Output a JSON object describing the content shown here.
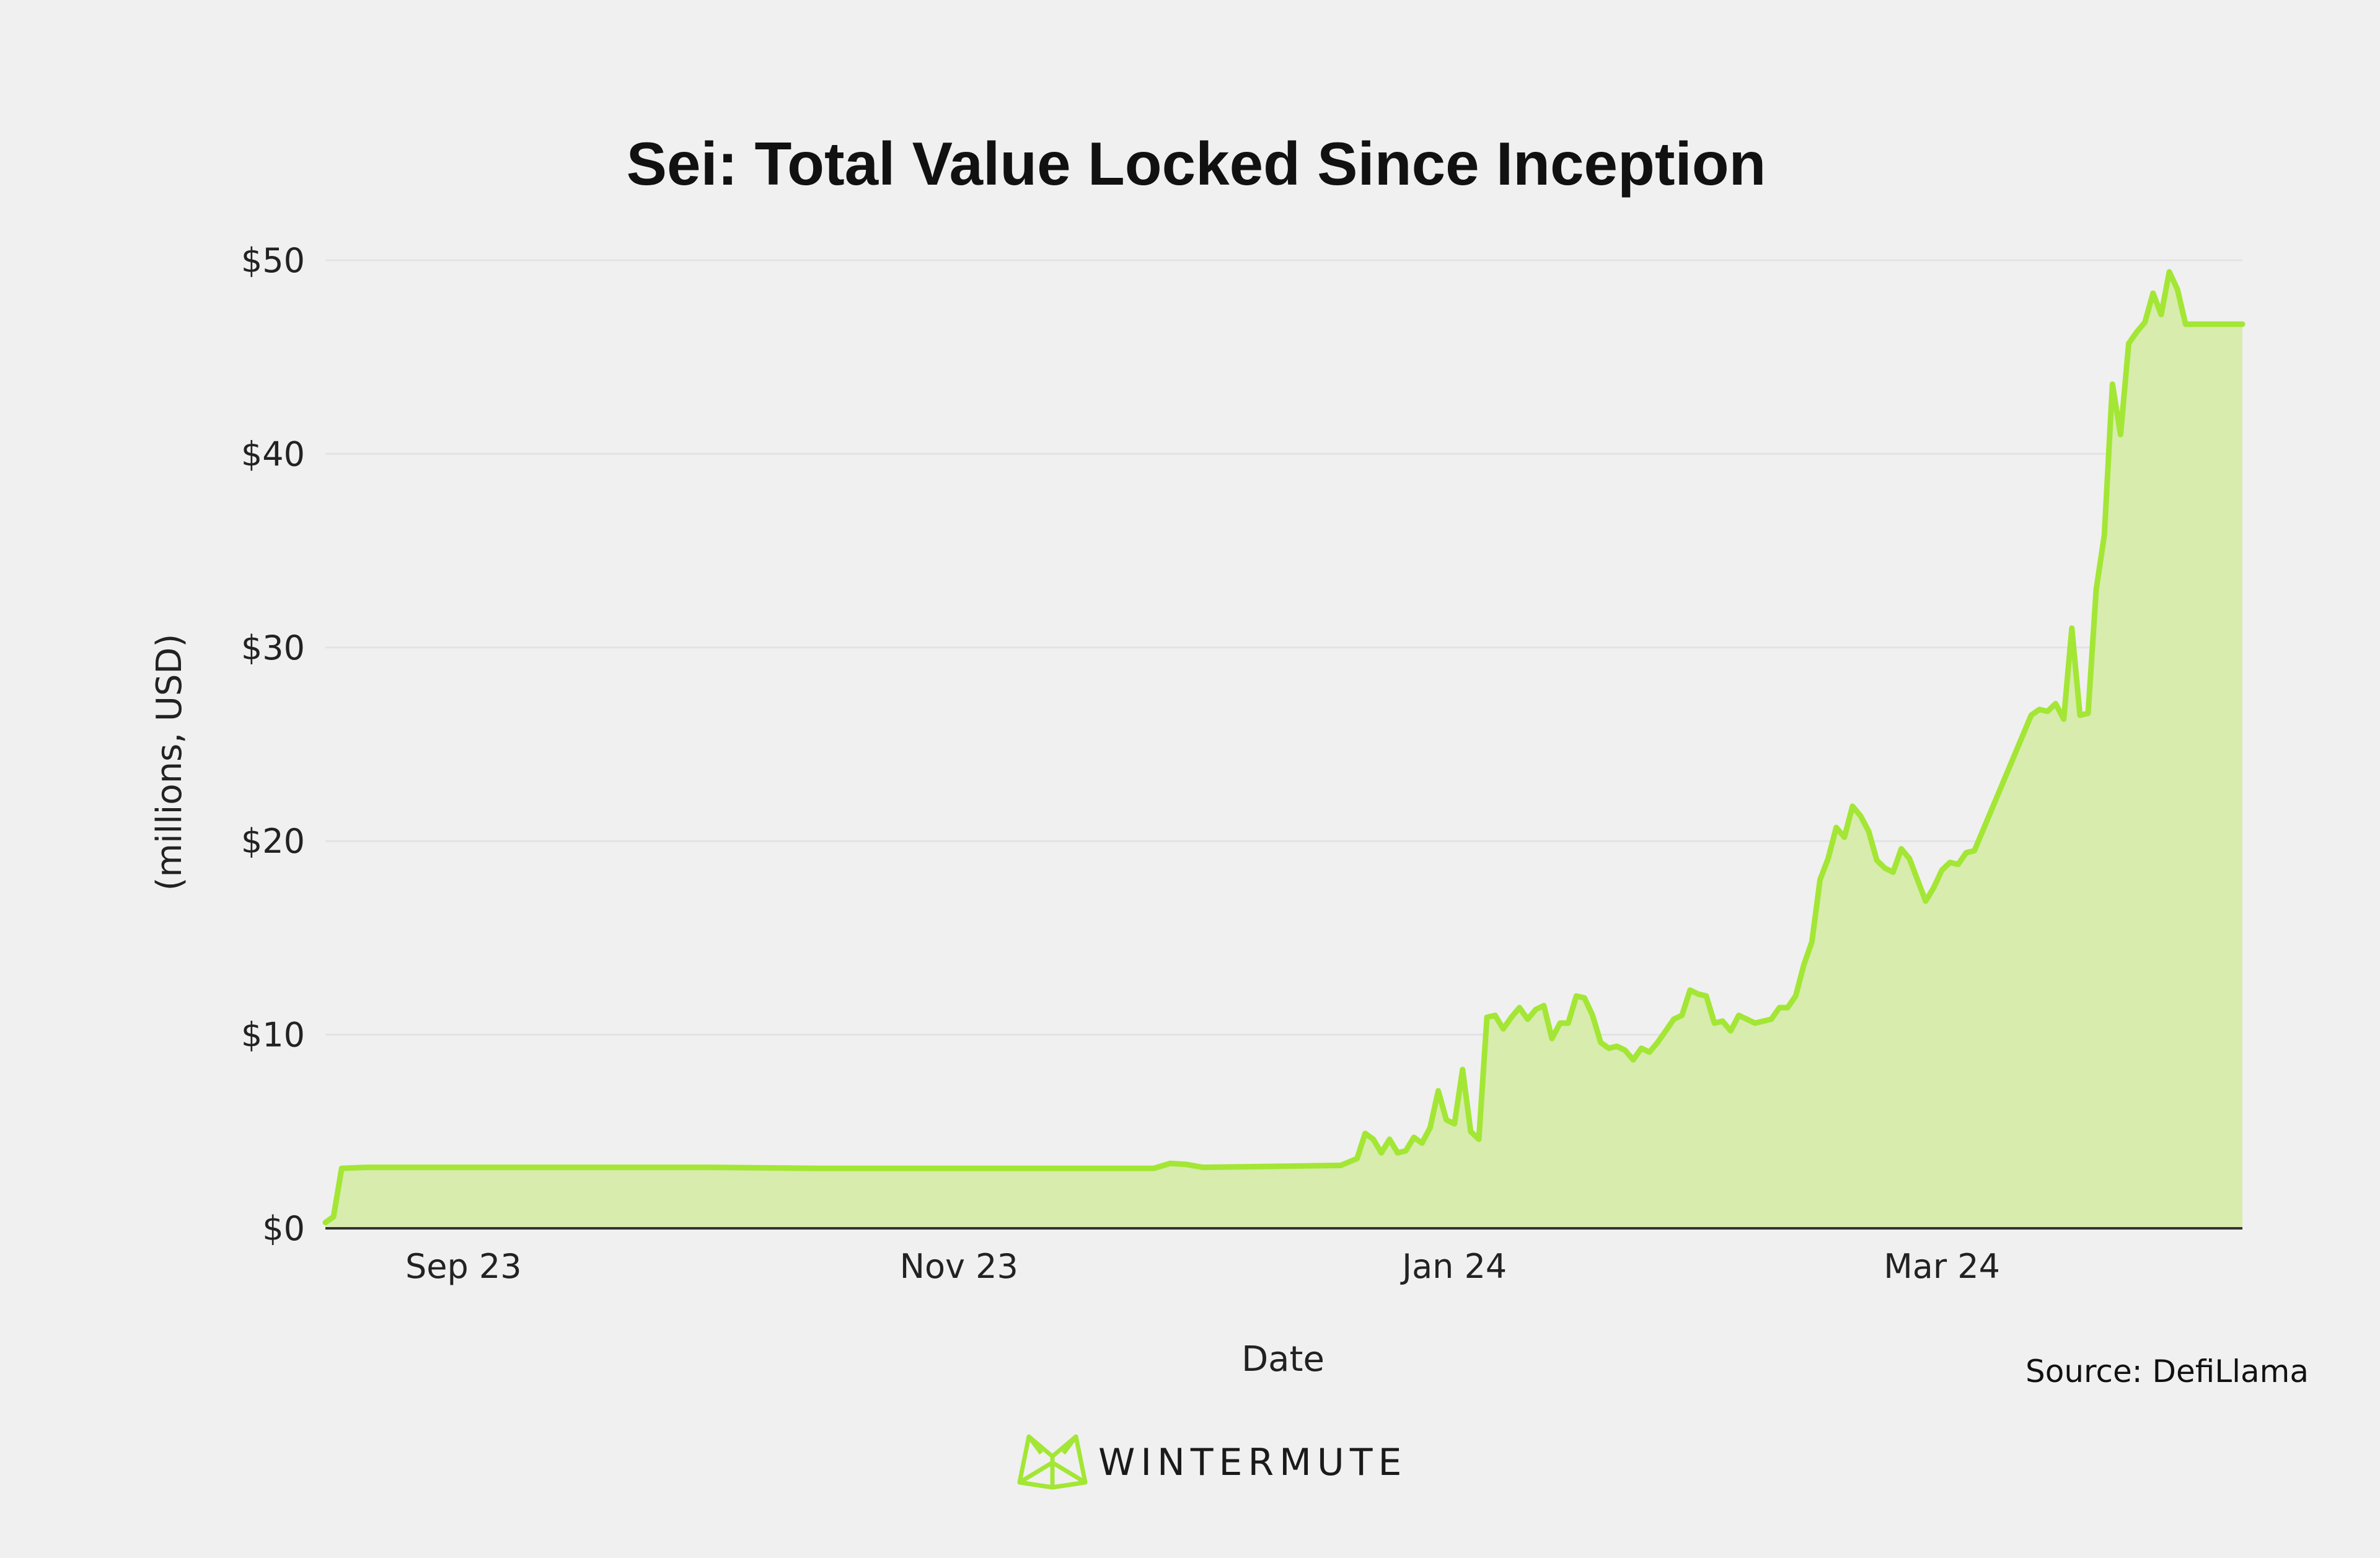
{
  "chart_data": {
    "type": "area",
    "title": "Sei: Total Value Locked Since Inception",
    "xlabel": "Date",
    "ylabel": "(millions, USD)",
    "source": "Source: DefiLlama",
    "brand": "WINTERMUTE",
    "ylim": [
      0,
      50
    ],
    "xlim": [
      "2023-08-15",
      "2024-04-07"
    ],
    "y_ticks": [
      0,
      10,
      20,
      30,
      40,
      50
    ],
    "y_tick_labels": [
      "$0",
      "$10",
      "$20",
      "$30",
      "$40",
      "$50"
    ],
    "x_ticks": [
      "2023-09-01",
      "2023-11-01",
      "2024-01-01",
      "2024-03-01"
    ],
    "x_tick_labels": [
      "Sep 23",
      "Nov 23",
      "Jan 24",
      "Mar 24"
    ],
    "grid": true,
    "legend": "none",
    "colors": {
      "line": "#a3e635",
      "fill": "#d7ecad",
      "background": "#f0f0f0"
    },
    "series": [
      {
        "x": [
          "2023-08-15",
          "2023-08-16",
          "2023-08-17",
          "2023-08-20",
          "2023-08-25",
          "2023-09-01",
          "2023-09-15",
          "2023-10-01",
          "2023-10-15",
          "2023-11-01",
          "2023-11-15",
          "2023-11-25",
          "2023-11-27",
          "2023-11-29",
          "2023-12-01",
          "2023-12-10",
          "2023-12-18",
          "2023-12-20",
          "2023-12-21",
          "2023-12-22",
          "2023-12-23",
          "2023-12-24",
          "2023-12-25",
          "2023-12-26",
          "2023-12-27",
          "2023-12-28",
          "2023-12-29",
          "2023-12-30",
          "2023-12-31",
          "2024-01-01",
          "2024-01-02",
          "2024-01-03",
          "2024-01-04",
          "2024-01-05",
          "2024-01-06",
          "2024-01-07",
          "2024-01-08",
          "2024-01-09",
          "2024-01-10",
          "2024-01-11",
          "2024-01-12",
          "2024-01-13",
          "2024-01-14",
          "2024-01-15",
          "2024-01-16",
          "2024-01-17",
          "2024-01-18",
          "2024-01-19",
          "2024-01-20",
          "2024-01-21",
          "2024-01-22",
          "2024-01-23",
          "2024-01-24",
          "2024-01-25",
          "2024-01-26",
          "2024-01-27",
          "2024-01-28",
          "2024-01-29",
          "2024-01-30",
          "2024-01-31",
          "2024-02-01",
          "2024-02-02",
          "2024-02-03",
          "2024-02-04",
          "2024-02-05",
          "2024-02-06",
          "2024-02-07",
          "2024-02-08",
          "2024-02-09",
          "2024-02-10",
          "2024-02-11",
          "2024-02-12",
          "2024-02-13",
          "2024-02-14",
          "2024-02-15",
          "2024-02-16",
          "2024-02-17",
          "2024-02-18",
          "2024-02-19",
          "2024-02-20",
          "2024-02-21",
          "2024-02-22",
          "2024-02-23",
          "2024-02-24",
          "2024-02-25",
          "2024-02-26",
          "2024-02-27",
          "2024-02-28",
          "2024-02-29",
          "2024-03-01",
          "2024-03-02",
          "2024-03-03",
          "2024-03-04",
          "2024-03-05",
          "2024-03-06",
          "2024-03-07",
          "2024-03-08",
          "2024-03-09",
          "2024-03-10",
          "2024-03-11",
          "2024-03-12",
          "2024-03-13",
          "2024-03-14",
          "2024-03-15",
          "2024-03-16",
          "2024-03-17",
          "2024-03-18",
          "2024-03-19",
          "2024-03-20",
          "2024-03-21",
          "2024-03-22",
          "2024-03-23",
          "2024-03-24",
          "2024-03-25",
          "2024-03-26",
          "2024-03-27",
          "2024-03-28",
          "2024-03-29",
          "2024-03-30",
          "2024-03-31",
          "2024-04-01",
          "2024-04-02",
          "2024-04-03",
          "2024-04-04",
          "2024-04-05",
          "2024-04-06",
          "2024-04-07"
        ],
        "values": [
          0.3,
          0.6,
          3.1,
          3.15,
          3.15,
          3.15,
          3.15,
          3.15,
          3.1,
          3.1,
          3.1,
          3.1,
          3.35,
          3.3,
          3.15,
          3.2,
          3.25,
          3.6,
          4.9,
          4.6,
          3.9,
          4.6,
          3.9,
          4.0,
          4.7,
          4.4,
          5.2,
          7.1,
          5.6,
          5.4,
          8.2,
          5.0,
          4.6,
          10.9,
          11.0,
          10.3,
          10.9,
          11.4,
          10.8,
          11.3,
          11.5,
          9.8,
          10.6,
          10.6,
          12.0,
          11.9,
          11.0,
          9.6,
          9.3,
          9.4,
          9.2,
          8.7,
          9.3,
          9.1,
          9.6,
          10.2,
          10.8,
          11.0,
          12.3,
          12.1,
          12.0,
          10.6,
          10.7,
          10.2,
          11.0,
          10.8,
          10.6,
          10.7,
          10.8,
          11.4,
          11.4,
          12.0,
          13.6,
          14.8,
          18.0,
          19.1,
          20.7,
          20.2,
          21.8,
          21.3,
          20.5,
          19.0,
          18.6,
          18.4,
          19.6,
          19.1,
          18.0,
          16.9,
          17.6,
          18.5,
          18.9,
          18.8,
          19.4,
          19.5,
          20.5,
          21.5,
          22.5,
          23.5,
          24.5,
          25.5,
          26.5,
          26.8,
          26.7,
          27.1,
          26.3,
          31.0,
          26.5,
          26.6,
          33.0,
          35.8,
          43.6,
          41.0,
          45.7,
          46.3,
          46.8,
          48.3,
          47.2,
          49.4,
          48.5,
          46.7,
          46.7,
          46.7,
          46.7,
          46.7,
          46.7,
          46.7,
          46.7
        ]
      }
    ]
  }
}
